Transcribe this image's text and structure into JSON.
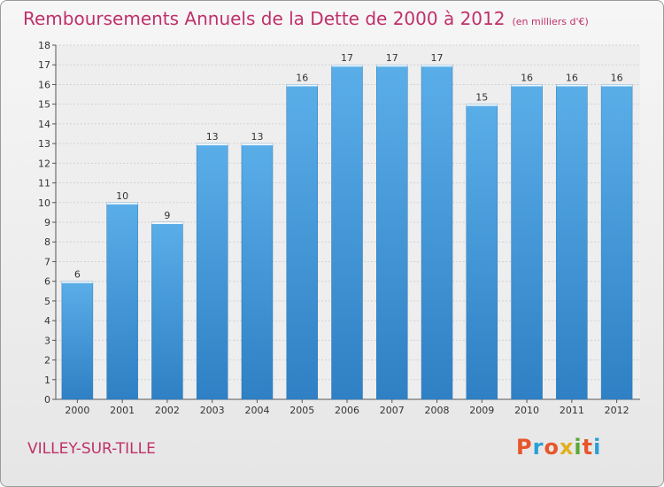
{
  "header": {
    "title": "Remboursements Annuels de la Dette de 2000 à 2012",
    "unit": "(en milliers d'€)"
  },
  "footer": {
    "city": "VILLEY-SUR-TILLE",
    "brand": "Proxiti",
    "brand_colors": [
      "#e8552a",
      "#2a9fd8",
      "#e8552a",
      "#e0b020",
      "#5aa832",
      "#e8552a",
      "#2a9fd8"
    ]
  },
  "chart_data": {
    "type": "bar",
    "title": "Remboursements Annuels de la Dette de 2000 à 2012",
    "subtitle": "(en milliers d'€)",
    "xlabel": "",
    "ylabel": "",
    "categories": [
      "2000",
      "2001",
      "2002",
      "2003",
      "2004",
      "2005",
      "2006",
      "2007",
      "2008",
      "2009",
      "2010",
      "2011",
      "2012"
    ],
    "values": [
      6,
      10,
      9,
      13,
      13,
      16,
      17,
      17,
      17,
      15,
      16,
      16,
      16
    ],
    "data_labels": [
      "6",
      "10",
      "9",
      "13",
      "13",
      "16",
      "17",
      "17",
      "17",
      "15",
      "16",
      "16",
      "16"
    ],
    "y_ticks": [
      "0",
      "1",
      "2",
      "3",
      "4",
      "5",
      "6",
      "7",
      "8",
      "9",
      "10",
      "11",
      "12",
      "13",
      "14",
      "15",
      "16",
      "17",
      "18"
    ],
    "ylim": [
      0,
      18
    ],
    "grid": true,
    "bar_color": "#3f92d6"
  }
}
